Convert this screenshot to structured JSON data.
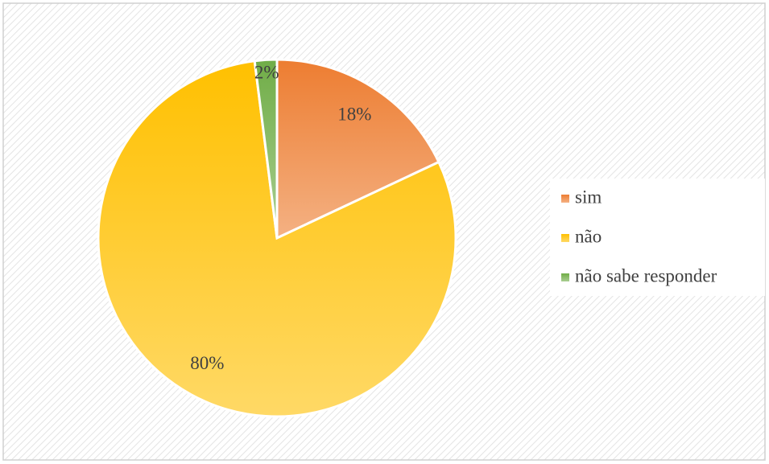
{
  "chart_data": {
    "type": "pie",
    "categories": [
      "sim",
      "não",
      "não sabe responder"
    ],
    "values": [
      18,
      80,
      2
    ],
    "value_labels": [
      "18%",
      "80%",
      "2%"
    ],
    "colors": [
      "#ed7d31",
      "#ffc000",
      "#70ad47"
    ],
    "legend": "right"
  }
}
